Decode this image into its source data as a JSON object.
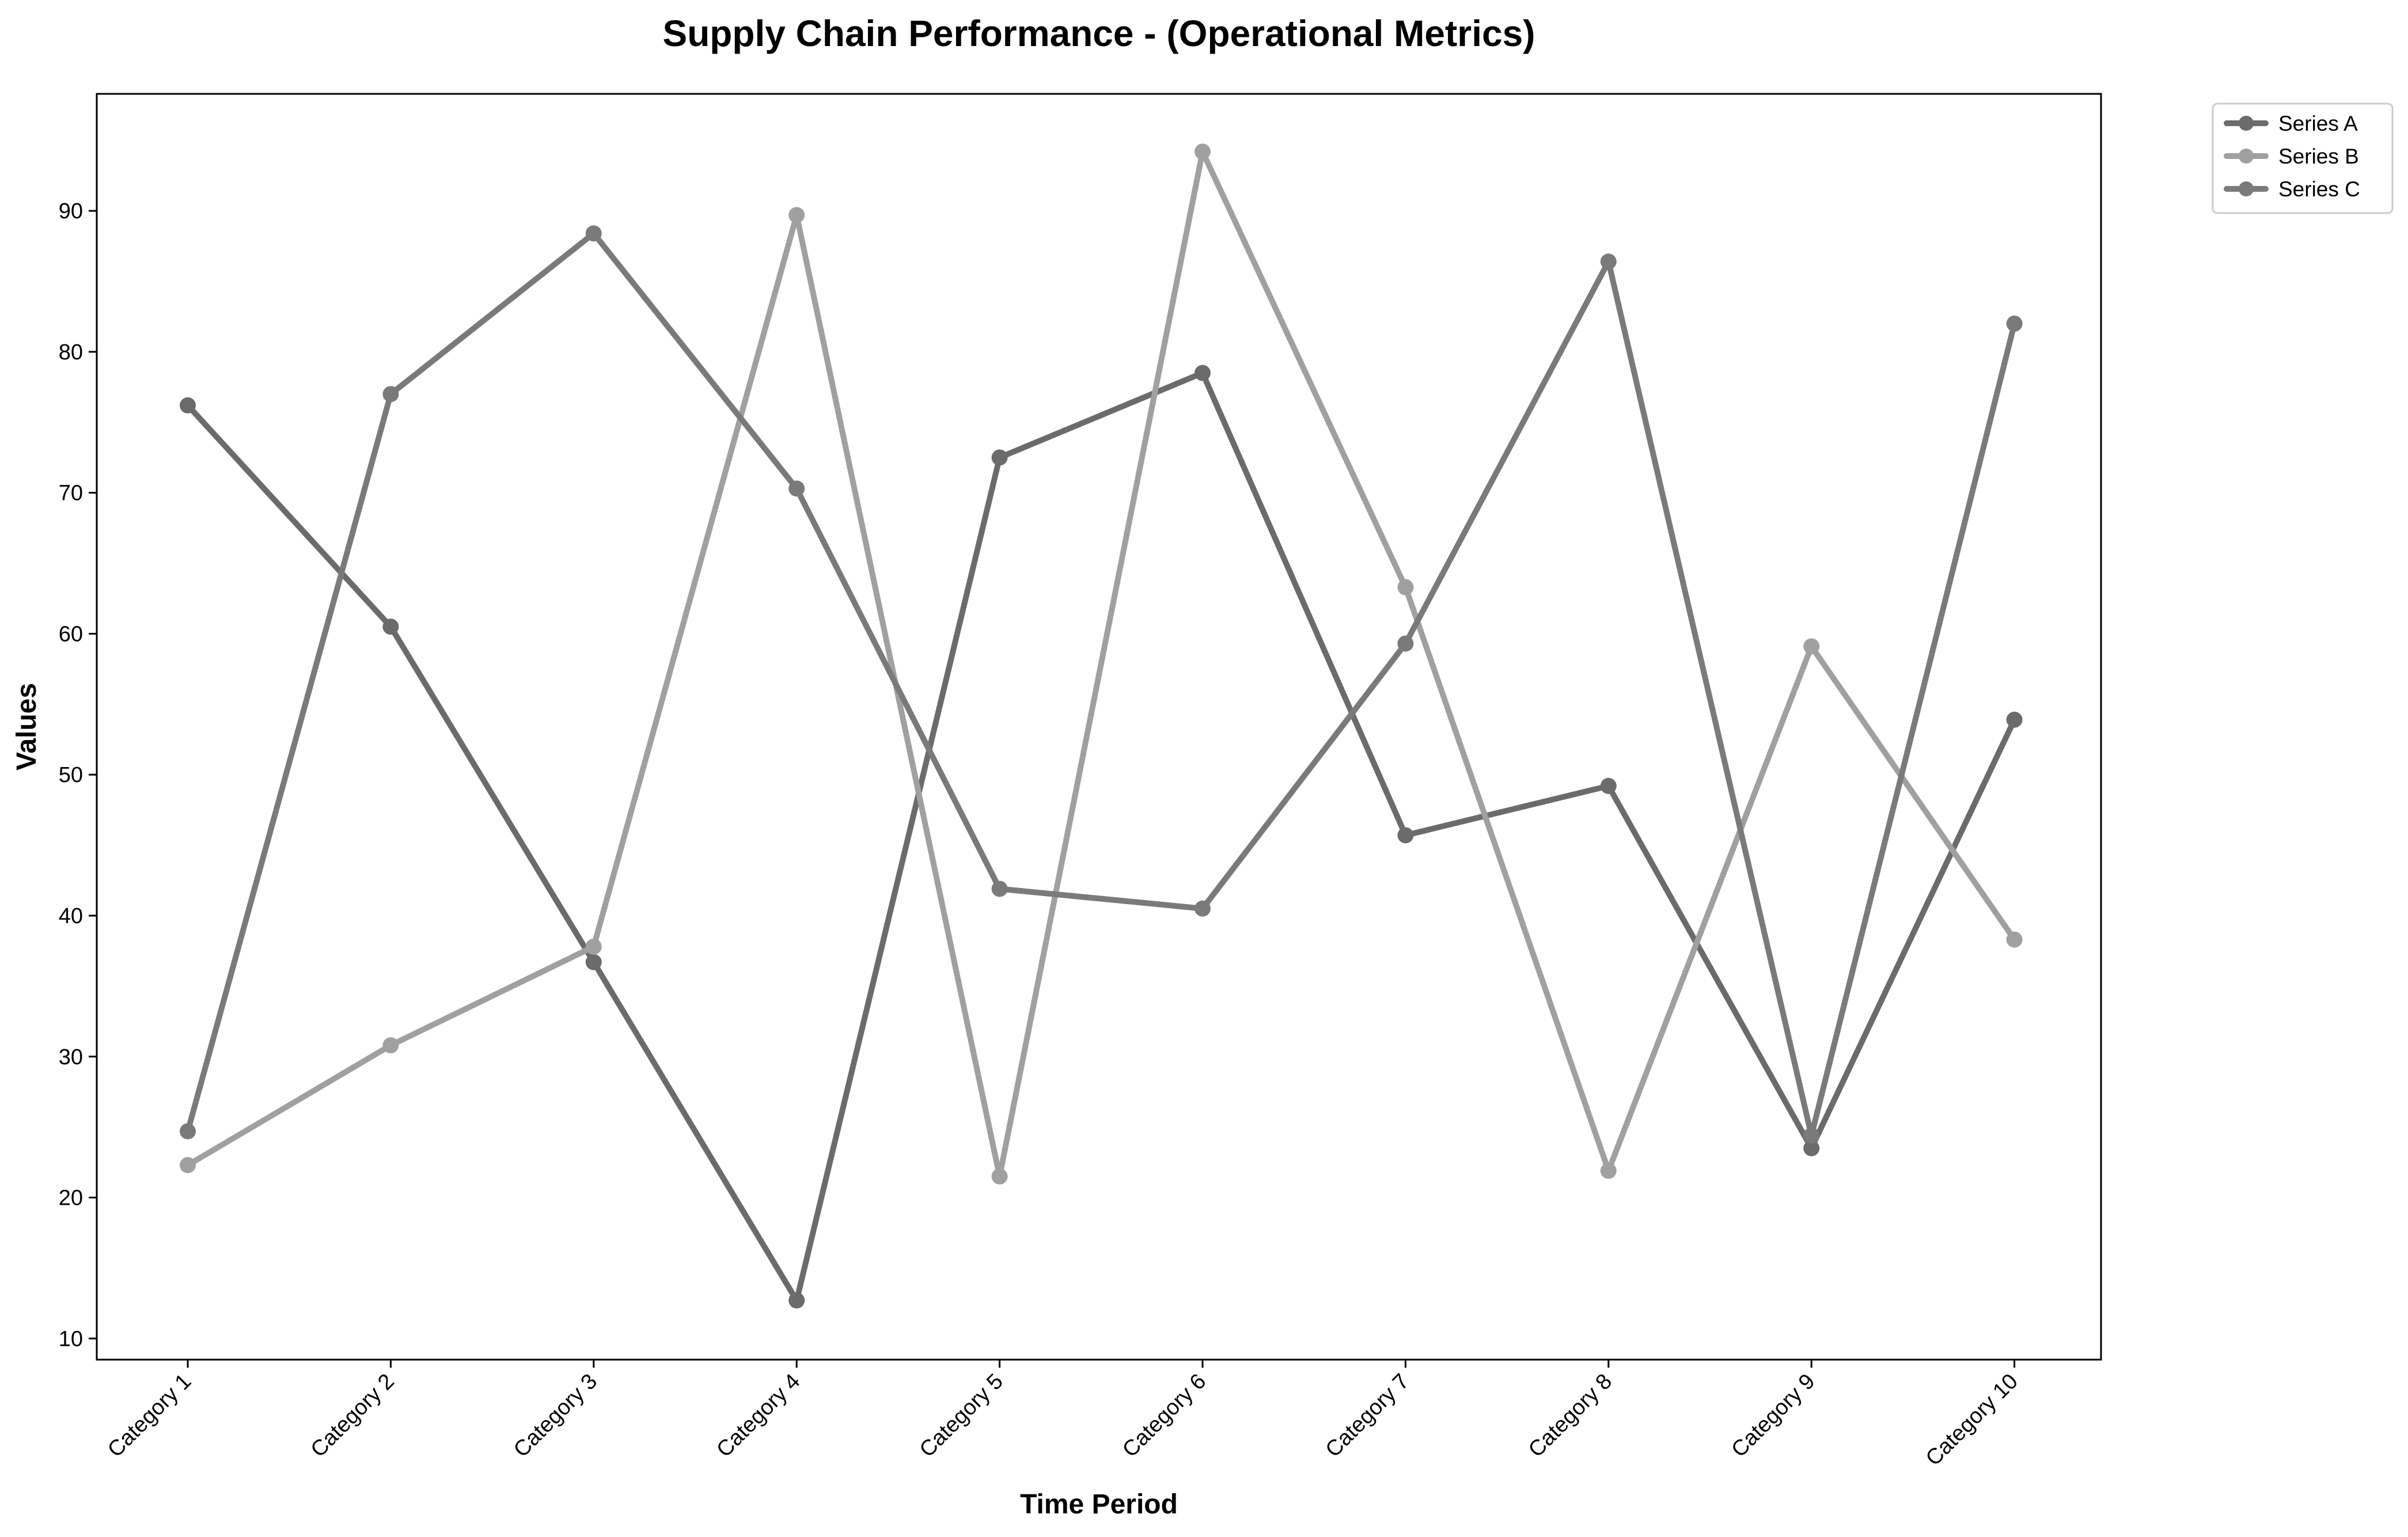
{
  "chart_data": {
    "type": "line",
    "title": "Supply Chain Performance - (Operational Metrics)",
    "xlabel": "Time Period",
    "ylabel": "Values",
    "categories": [
      "Category 1",
      "Category 2",
      "Category 3",
      "Category 4",
      "Category 5",
      "Category 6",
      "Category 7",
      "Category 8",
      "Category 9",
      "Category 10"
    ],
    "ylim": [
      8.5,
      98.3
    ],
    "yticks": [
      10,
      20,
      30,
      40,
      50,
      60,
      70,
      80,
      90
    ],
    "grid": false,
    "legend_position": "upper right, outside plot",
    "series": [
      {
        "name": "Series A",
        "color": "#6b6b6b",
        "values": [
          76.2,
          60.5,
          36.7,
          12.7,
          72.5,
          78.5,
          45.7,
          49.2,
          23.5,
          53.9
        ]
      },
      {
        "name": "Series B",
        "color": "#a0a0a0",
        "values": [
          22.3,
          30.8,
          37.8,
          89.7,
          21.5,
          94.2,
          63.3,
          21.9,
          59.1,
          38.3
        ]
      },
      {
        "name": "Series C",
        "color": "#7a7a7a",
        "values": [
          24.7,
          77.0,
          88.4,
          70.3,
          41.9,
          40.5,
          59.3,
          86.4,
          24.4,
          82.0
        ]
      }
    ]
  }
}
